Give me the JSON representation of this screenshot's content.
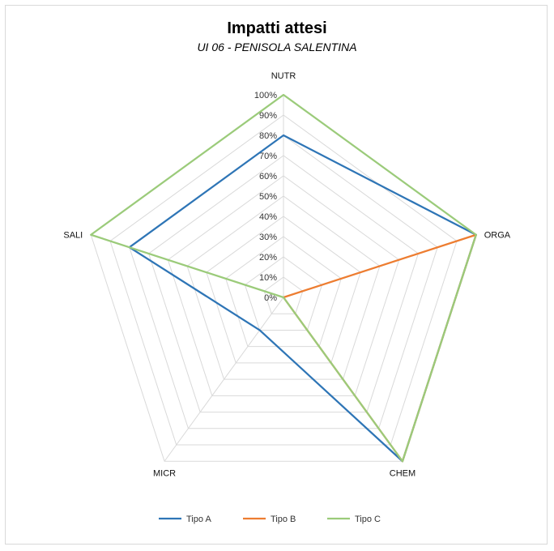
{
  "chart_data": {
    "type": "radar",
    "title": "Impatti attesi",
    "subtitle": "UI 06 - PENISOLA SALENTINA",
    "categories": [
      "NUTR",
      "ORGA",
      "CHEM",
      "MICR",
      "SALI"
    ],
    "r_ticks": [
      "0%",
      "10%",
      "20%",
      "30%",
      "40%",
      "50%",
      "60%",
      "70%",
      "80%",
      "90%",
      "100%"
    ],
    "r_range": [
      0,
      100
    ],
    "grid": true,
    "legend_position": "bottom",
    "series": [
      {
        "name": "Tipo A",
        "color": "#2e75b6",
        "values": [
          80,
          100,
          100,
          20,
          80
        ]
      },
      {
        "name": "Tipo B",
        "color": "#ed7d31",
        "values": [
          0,
          100,
          100,
          0,
          0
        ]
      },
      {
        "name": "Tipo C",
        "color": "#9bcb7a",
        "values": [
          100,
          100,
          100,
          0,
          100
        ]
      }
    ]
  }
}
